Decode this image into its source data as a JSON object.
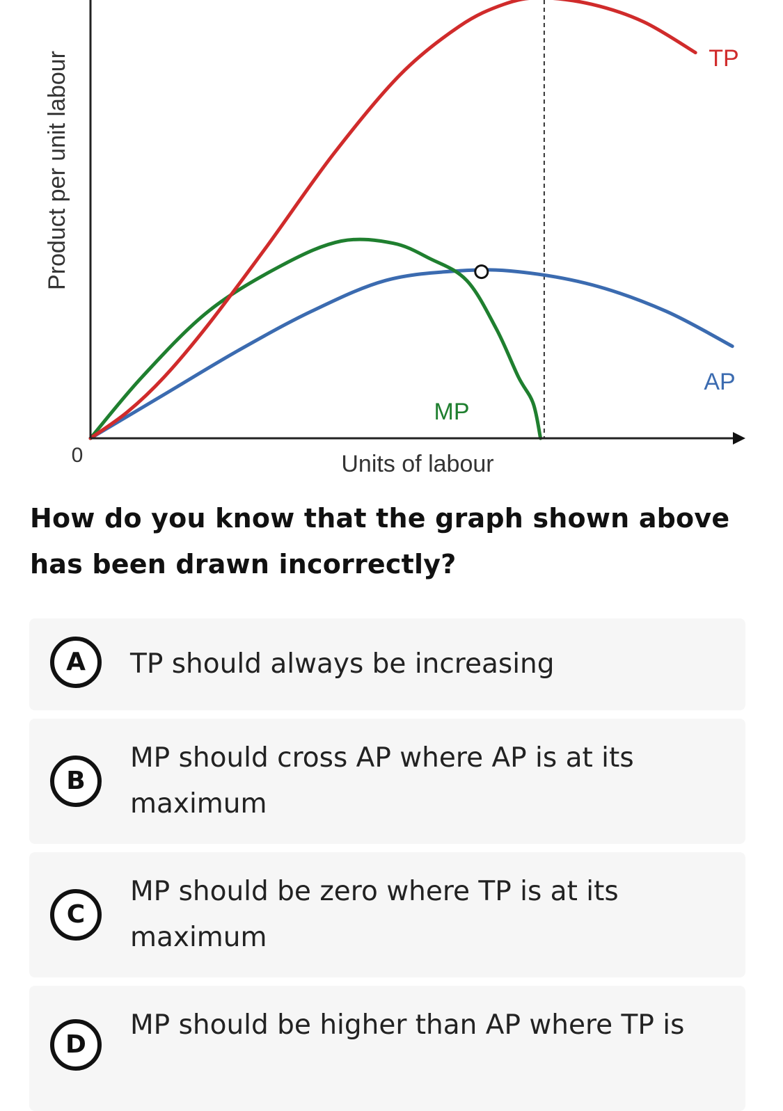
{
  "chart_data": {
    "type": "line",
    "ylabel": "Product per unit labour",
    "xlabel": "Units of labour",
    "origin_label": "0",
    "x_range": [
      0,
      10
    ],
    "y_range": [
      0,
      10
    ],
    "series": [
      {
        "name": "TP",
        "color": "#d02b2b",
        "points": [
          [
            0,
            0
          ],
          [
            0.5,
            0.6
          ],
          [
            1.0,
            1.4
          ],
          [
            1.6,
            2.6
          ],
          [
            2.4,
            4.4
          ],
          [
            3.3,
            6.5
          ],
          [
            4.2,
            8.3
          ],
          [
            5.0,
            9.4
          ],
          [
            5.6,
            9.9
          ],
          [
            6.1,
            10.05
          ],
          [
            6.8,
            9.9
          ],
          [
            7.5,
            9.5
          ],
          [
            8.2,
            8.8
          ]
        ]
      },
      {
        "name": "AP",
        "color": "#3b6bb0",
        "points": [
          [
            0,
            0
          ],
          [
            1.0,
            1.0
          ],
          [
            2.0,
            2.0
          ],
          [
            3.0,
            2.9
          ],
          [
            4.0,
            3.6
          ],
          [
            5.0,
            3.82
          ],
          [
            5.8,
            3.8
          ],
          [
            6.8,
            3.5
          ],
          [
            7.8,
            2.9
          ],
          [
            8.7,
            2.1
          ]
        ]
      },
      {
        "name": "MP",
        "color": "#1f7f2f",
        "points": [
          [
            0,
            0
          ],
          [
            0.7,
            1.4
          ],
          [
            1.6,
            2.9
          ],
          [
            2.6,
            3.95
          ],
          [
            3.4,
            4.5
          ],
          [
            4.1,
            4.45
          ],
          [
            4.6,
            4.1
          ],
          [
            5.1,
            3.6
          ],
          [
            5.5,
            2.5
          ],
          [
            5.8,
            1.4
          ],
          [
            6.0,
            0.8
          ],
          [
            6.1,
            0
          ]
        ]
      }
    ],
    "intersection": [
      5.3,
      3.8
    ],
    "vertical_reference_x": 6.15,
    "marker": "open-circle",
    "grid": false,
    "legend": "inline labels"
  },
  "question": "How do you know that the graph shown above has been drawn incorrectly?",
  "options": [
    {
      "letter": "A",
      "text": "TP should always be increasing"
    },
    {
      "letter": "B",
      "text": "MP should cross AP where AP is at its maximum"
    },
    {
      "letter": "C",
      "text": "MP should be zero where TP is at its maximum"
    },
    {
      "letter": "D",
      "text": "MP should be higher than AP where TP is"
    }
  ]
}
